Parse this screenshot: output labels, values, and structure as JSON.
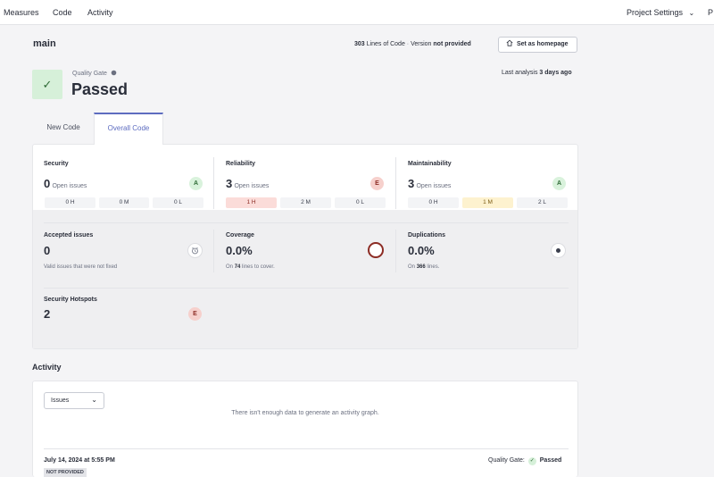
{
  "nav": {
    "items": [
      "Measures",
      "Code",
      "Activity"
    ],
    "project_settings": "Project Settings",
    "chevron": "⌄",
    "right_cut": "P"
  },
  "header": {
    "branch": "main",
    "lines_value": "303",
    "lines_label": "Lines of Code",
    "sep": "·",
    "version_label": "Version",
    "version_value": "not provided",
    "homepage_button": "Set as homepage"
  },
  "quality_gate": {
    "label": "Quality Gate",
    "status": "Passed",
    "check": "✓",
    "last_analysis_label": "Last analysis",
    "last_analysis_value": "3 days ago"
  },
  "tabs": [
    {
      "label": "New Code",
      "active": false
    },
    {
      "label": "Overall Code",
      "active": true
    }
  ],
  "metrics": {
    "security": {
      "title": "Security",
      "value": "0",
      "sub": "Open issues",
      "grade": "A",
      "pills": [
        "0 H",
        "0 M",
        "0 L"
      ]
    },
    "reliability": {
      "title": "Reliability",
      "value": "3",
      "sub": "Open issues",
      "grade": "E",
      "pills": [
        "1 H",
        "2 M",
        "0 L"
      ]
    },
    "maintainability": {
      "title": "Maintainability",
      "value": "3",
      "sub": "Open issues",
      "grade": "A",
      "pills": [
        "0 H",
        "1 M",
        "2 L"
      ]
    },
    "accepted": {
      "title": "Accepted issues",
      "value": "0",
      "sub": "Valid issues that were not fixed"
    },
    "coverage": {
      "title": "Coverage",
      "value": "0.0%",
      "sub_pre": "On",
      "sub_num": "74",
      "sub_post": "lines to cover."
    },
    "duplications": {
      "title": "Duplications",
      "value": "0.0%",
      "sub_pre": "On",
      "sub_num": "366",
      "sub_post": "lines."
    },
    "hotspots": {
      "title": "Security Hotspots",
      "value": "2",
      "grade": "E"
    }
  },
  "activity": {
    "title": "Activity",
    "select_value": "Issues",
    "empty_message": "There isn't enough data to generate an activity graph.",
    "entry_date": "July 14, 2024 at 5:55 PM",
    "entry_badge": "NOT PROVIDED",
    "entry_gate_label": "Quality Gate:",
    "entry_gate_status": "Passed"
  },
  "colors": {
    "accent": "#5d6cc0",
    "passed_bg": "#d6f0d9",
    "grade_a": "#d9f2dc",
    "grade_e": "#f6d0cc",
    "high_bg": "#fbdcd9",
    "medium_bg": "#fdf2cf"
  }
}
